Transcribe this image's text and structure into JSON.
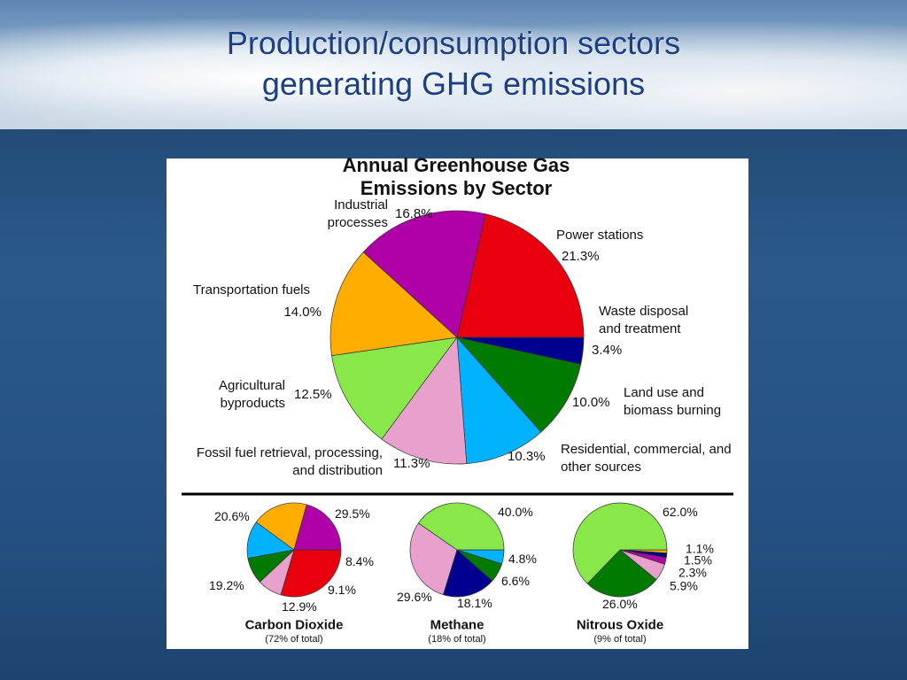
{
  "slide": {
    "title": [
      "Production/consumption sectors",
      "generating GHG emissions"
    ]
  },
  "chart_data": [
    {
      "type": "pie",
      "title": "Annual Greenhouse Gas Emissions by Sector",
      "categories": [
        "Waste disposal and treatment",
        "Land use and biomass burning",
        "Residential, commercial, and other sources",
        "Fossil fuel retrieval, processing, and distribution",
        "Agricultural byproducts",
        "Transportation fuels",
        "Industrial processes",
        "Power stations"
      ],
      "values": [
        3.4,
        10.0,
        10.3,
        11.3,
        12.5,
        14.0,
        16.8,
        21.3
      ],
      "value_labels": [
        "3.4%",
        "10.0%",
        "10.3%",
        "11.3%",
        "12.5%",
        "14.0%",
        "16.8%",
        "21.3%"
      ],
      "colors": [
        "#00008f",
        "#007a00",
        "#00b2ff",
        "#e8a0cc",
        "#88e84a",
        "#ffad00",
        "#b000a8",
        "#e8000f"
      ]
    },
    {
      "type": "pie",
      "title": "Carbon Dioxide",
      "subtitle": "(72% of total)",
      "values": [
        29.5,
        8.4,
        9.1,
        12.9,
        19.2,
        20.6
      ],
      "value_labels": [
        "29.5%",
        "8.4%",
        "9.1%",
        "12.9%",
        "19.2%",
        "20.6%"
      ],
      "colors": [
        "#e8000f",
        "#e8a0cc",
        "#007a00",
        "#00b2ff",
        "#ffad00",
        "#b000a8"
      ]
    },
    {
      "type": "pie",
      "title": "Methane",
      "subtitle": "(18% of total)",
      "values": [
        4.8,
        6.6,
        18.1,
        29.6,
        40.0
      ],
      "value_labels": [
        "4.8%",
        "6.6%",
        "18.1%",
        "29.6%",
        "40.0%"
      ],
      "colors": [
        "#00b2ff",
        "#007a00",
        "#00008f",
        "#e8a0cc",
        "#88e84a"
      ]
    },
    {
      "type": "pie",
      "title": "Nitrous Oxide",
      "subtitle": "(9% of total)",
      "values": [
        1.1,
        1.5,
        2.3,
        5.9,
        26.0,
        62.0
      ],
      "value_labels": [
        "1.1%",
        "1.5%",
        "2.3%",
        "5.9%",
        "26.0%",
        "62.0%"
      ],
      "colors": [
        "#ffad00",
        "#00008f",
        "#b000a8",
        "#e8a0cc",
        "#007a00",
        "#88e84a"
      ]
    }
  ]
}
